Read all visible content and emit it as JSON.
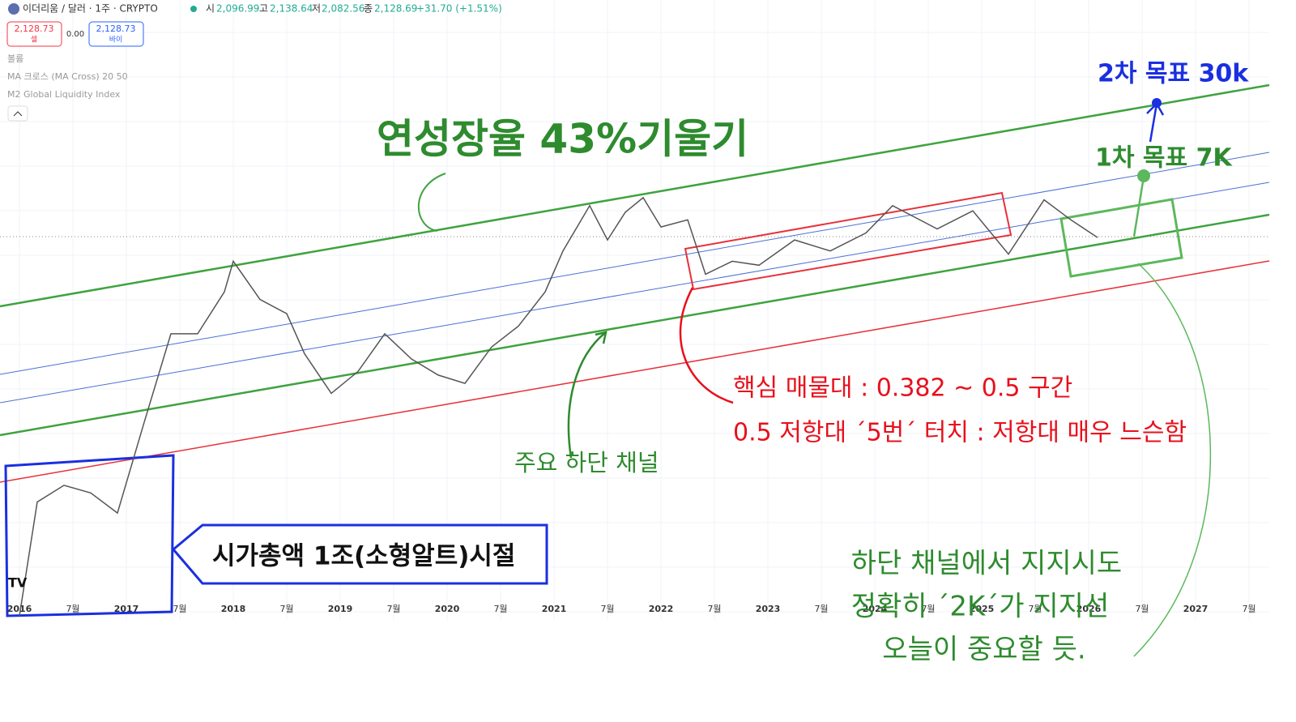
{
  "header": {
    "symbol": "이더리움 / 달러 · 1주 · CRYPTO",
    "open_label": "시",
    "open": "2,096.99",
    "high_label": "고",
    "high": "2,138.64",
    "low_label": "저",
    "low": "2,082.56",
    "close_label": "종",
    "close": "2,128.69",
    "change": "+31.70 (+1.51%)",
    "sell_price": "2,128.73",
    "sell_label": "셀",
    "spread": "0.00",
    "buy_price": "2,128.73",
    "buy_label": "바이"
  },
  "indicators": [
    "볼륨",
    "MA 크로스 (MA Cross) 20 50",
    "M2 Global Liquidity Index"
  ],
  "price_chart": {
    "type": "line",
    "color": "#555555",
    "log_scale": true,
    "ylim": [
      1,
      200000
    ],
    "x": [
      "2016-01",
      "2016-03",
      "2016-06",
      "2016-09",
      "2016-12",
      "2017-03",
      "2017-06",
      "2017-09",
      "2017-12",
      "2018-01",
      "2018-04",
      "2018-07",
      "2018-09",
      "2018-12",
      "2019-03",
      "2019-06",
      "2019-09",
      "2019-12",
      "2020-03",
      "2020-06",
      "2020-09",
      "2020-12",
      "2021-02",
      "2021-05",
      "2021-07",
      "2021-09",
      "2021-11",
      "2022-01",
      "2022-04",
      "2022-06",
      "2022-09",
      "2022-12",
      "2023-04",
      "2023-08",
      "2023-12",
      "2024-03",
      "2024-08",
      "2024-12",
      "2025-04",
      "2025-08",
      "2025-11",
      "2026-02"
    ],
    "values": [
      1,
      10,
      14,
      12,
      8,
      50,
      300,
      300,
      700,
      1300,
      600,
      450,
      200,
      90,
      140,
      300,
      180,
      130,
      110,
      230,
      350,
      700,
      1600,
      4000,
      2000,
      3500,
      4700,
      2600,
      3000,
      1000,
      1300,
      1200,
      2000,
      1600,
      2300,
      4000,
      2500,
      3600,
      1500,
      4500,
      3000,
      2100
    ]
  },
  "x_axis_labels": [
    "2016",
    "7월",
    "2017",
    "7월",
    "2018",
    "7월",
    "2019",
    "7월",
    "2020",
    "7월",
    "2021",
    "7월",
    "2022",
    "7월",
    "2023",
    "7월",
    "2024",
    "7월",
    "2025",
    "7월",
    "2026",
    "7월",
    "2027",
    "7월"
  ],
  "annotations": {
    "slope": "연성장율 43%기울기",
    "target2": "2차 목표 30k",
    "target1": "1차 목표 7K",
    "resistance_zone": "핵심 매물대 : 0.382 ~ 0.5 구간",
    "resistance_touch": "0.5 저항대 ´5번´ 터치 : 저항대 매우 느슨함",
    "lower_channel": "주요 하단 채널",
    "era": "시가총액 1조(소형알트)시절",
    "support": [
      "하단 채널에서 지지시도",
      "정확히 ´2K´가 지지선",
      "오늘이 중요할 듯."
    ]
  }
}
